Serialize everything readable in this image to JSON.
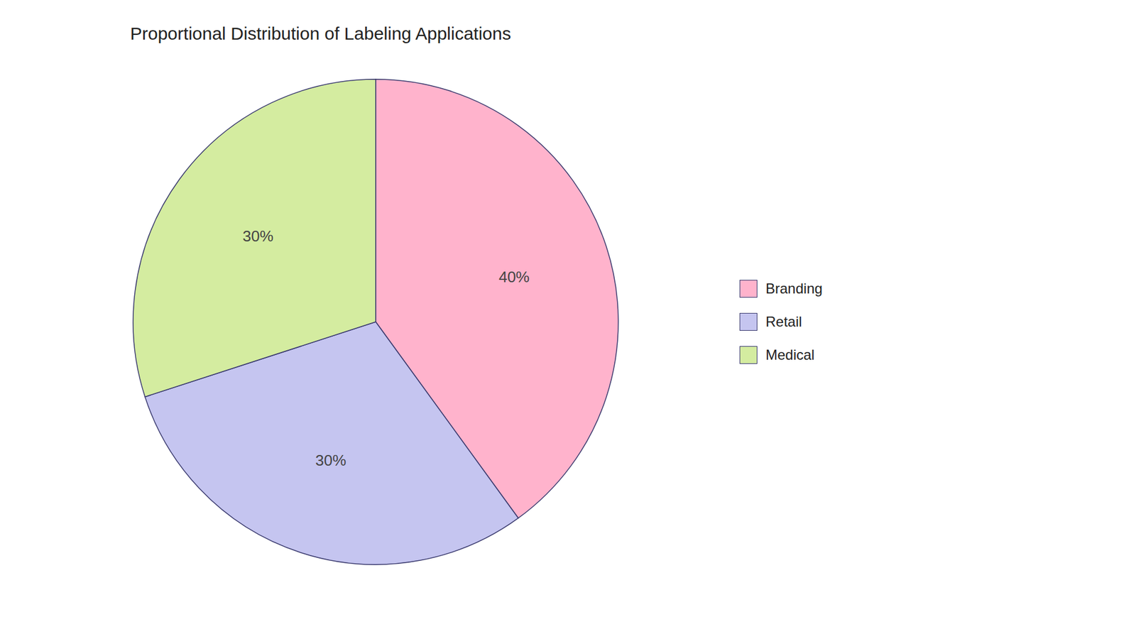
{
  "chart_data": {
    "type": "pie",
    "title": "Proportional Distribution of Labeling Applications",
    "categories": [
      "Branding",
      "Retail",
      "Medical"
    ],
    "values": [
      40,
      30,
      30
    ],
    "value_labels": [
      "40%",
      "30%",
      "30%"
    ],
    "colors": [
      "#FFB3CC",
      "#C5C5F0",
      "#D4ECA0"
    ],
    "data_labels": true,
    "legend": "right"
  }
}
